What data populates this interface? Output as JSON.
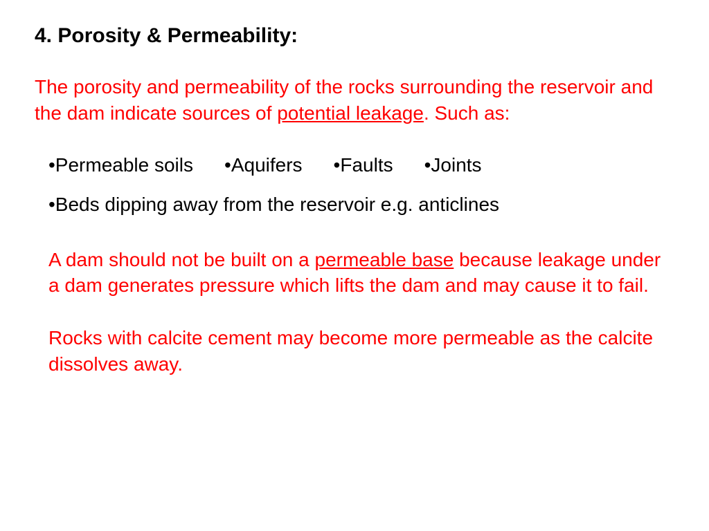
{
  "heading": "4. Porosity & Permeability:",
  "intro": {
    "part1": "The porosity and permeability of the rocks surrounding the reservoir and the dam indicate sources of ",
    "underlined": "potential leakage",
    "part2": ". Such as:"
  },
  "bullets_row1": {
    "b1": "•Permeable soils",
    "b2": "•Aquifers",
    "b3": "•Faults",
    "b4": "•Joints"
  },
  "bullets_row2": {
    "b1": "•Beds dipping away from the reservoir e.g. anticlines"
  },
  "para1": {
    "part1": "A dam should not be built on a ",
    "underlined": "permeable base",
    "part2": " because leakage under a dam generates pressure which lifts the dam and may cause it to fail."
  },
  "para2": "Rocks with calcite cement may become more permeable as the calcite dissolves away.",
  "colors": {
    "heading": "#000000",
    "red_text": "#ff0000",
    "black_text": "#000000",
    "background": "#ffffff"
  },
  "typography": {
    "font_family": "Comic Sans MS",
    "heading_size": 30,
    "body_size": 28,
    "heading_weight": "bold"
  }
}
